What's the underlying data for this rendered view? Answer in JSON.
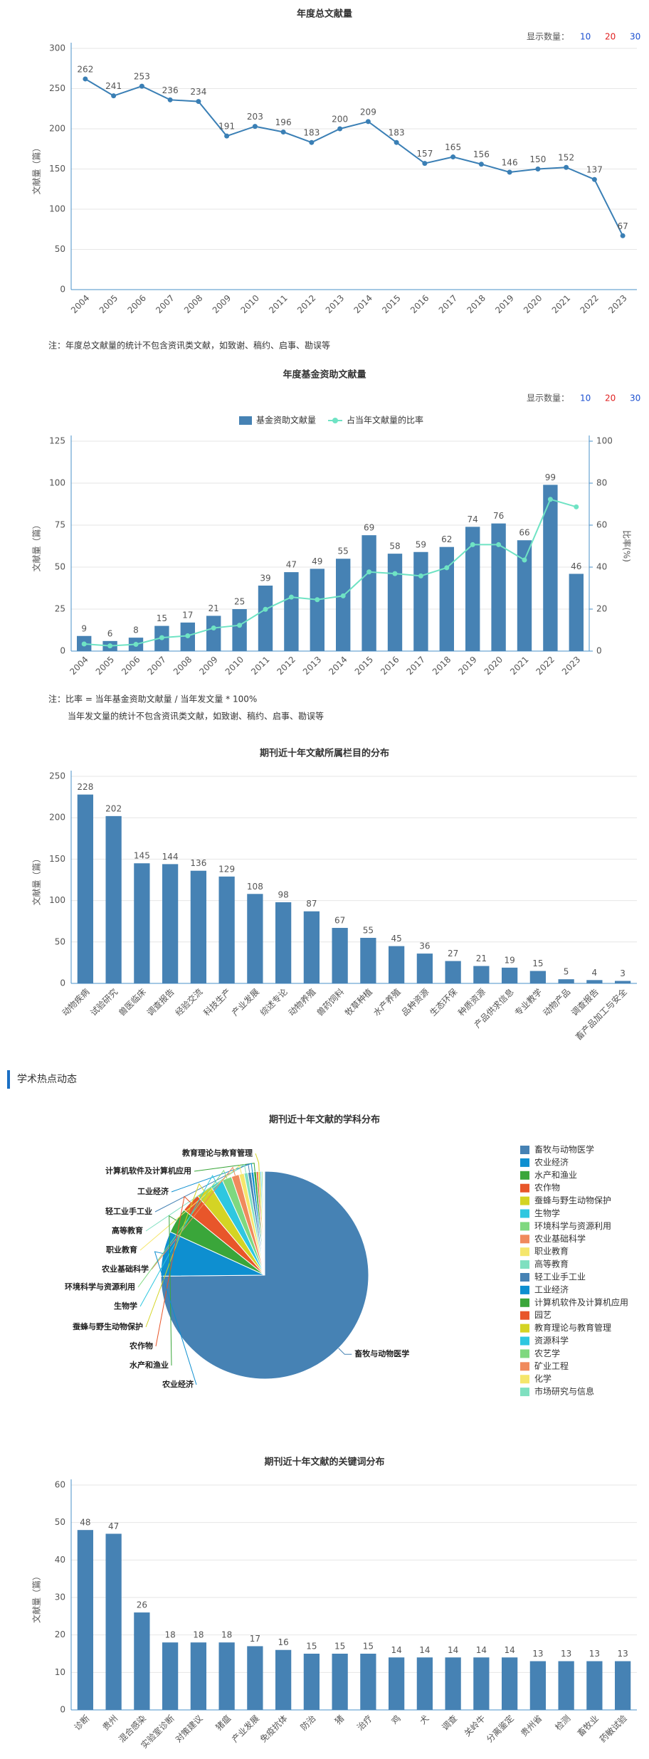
{
  "section_title": "学术热点动态",
  "chart_data": [
    {
      "type": "line",
      "title": "年度总文献量",
      "ylabel": "文献量（篇）",
      "color": "#3a7fb5",
      "controls": {
        "label": "显示数量：",
        "options": [
          10,
          20,
          30
        ],
        "option_colors": [
          "#1a4fd0",
          "#e02020",
          "#1a4fd0"
        ]
      },
      "notes": [
        "注：年度总文献量的统计不包含资讯类文献，如致谢、稿约、启事、勘误等"
      ],
      "categories": [
        "2004",
        "2005",
        "2006",
        "2007",
        "2008",
        "2009",
        "2010",
        "2011",
        "2012",
        "2013",
        "2014",
        "2015",
        "2016",
        "2017",
        "2018",
        "2019",
        "2020",
        "2021",
        "2022",
        "2023"
      ],
      "values": [
        262,
        241,
        253,
        236,
        234,
        191,
        203,
        196,
        183,
        200,
        209,
        183,
        157,
        165,
        156,
        146,
        150,
        152,
        137,
        67
      ],
      "ylim": [
        0,
        300
      ],
      "yticks": [
        0,
        50,
        100,
        150,
        200,
        250,
        300
      ],
      "grid": true
    },
    {
      "type": "bar",
      "title": "年度基金资助文献量",
      "ylabel": "文献量（篇）",
      "y2label": "比率(%)",
      "controls": {
        "label": "显示数量：",
        "options": [
          10,
          20,
          30
        ],
        "option_colors": [
          "#1a4fd0",
          "#e02020",
          "#1a4fd0"
        ]
      },
      "notes": [
        "注：比率 = 当年基金资助文献量 / 当年发文量 * 100%",
        "当年发文量的统计不包含资讯类文献，如致谢、稿约、启事、勘误等"
      ],
      "categories": [
        "2004",
        "2005",
        "2006",
        "2007",
        "2008",
        "2009",
        "2010",
        "2011",
        "2012",
        "2013",
        "2014",
        "2015",
        "2016",
        "2017",
        "2018",
        "2019",
        "2020",
        "2021",
        "2022",
        "2023"
      ],
      "series": [
        {
          "name": "基金资助文献量",
          "color": "#4682b4",
          "values": [
            9,
            6,
            8,
            15,
            17,
            21,
            25,
            39,
            47,
            49,
            55,
            69,
            58,
            59,
            62,
            74,
            76,
            66,
            99,
            46
          ]
        },
        {
          "name": "占当年文献量的比率",
          "color": "#6fe3c4",
          "axis": "y2",
          "values": [
            3.4,
            2.5,
            3.2,
            6.4,
            7.3,
            11,
            12.3,
            19.9,
            25.7,
            24.5,
            26.3,
            37.7,
            36.9,
            35.8,
            39.7,
            50.7,
            50.7,
            43.4,
            72.3,
            68.7
          ]
        }
      ],
      "ylim": [
        0,
        125
      ],
      "yticks": [
        0,
        25,
        50,
        75,
        100,
        125
      ],
      "y2lim": [
        0,
        100
      ],
      "y2ticks": [
        0,
        20,
        40,
        60,
        80,
        100
      ],
      "grid": true
    },
    {
      "type": "bar",
      "title": "期刊近十年文献所属栏目的分布",
      "ylabel": "文献量（篇）",
      "color": "#4682b4",
      "categories": [
        "动物疾病",
        "试验研究",
        "兽医临床",
        "调查报告",
        "经验交流",
        "科技生产",
        "产业发展",
        "综述专论",
        "动物养殖",
        "兽药饲料",
        "牧草种植",
        "水产养殖",
        "品种资源",
        "生态环保",
        "种质资源",
        "产品供求信息",
        "专业教学",
        "动物产品",
        "调查报告",
        "畜产品加工与安全"
      ],
      "values": [
        228,
        202,
        145,
        144,
        136,
        129,
        108,
        98,
        87,
        67,
        55,
        45,
        36,
        27,
        21,
        19,
        15,
        5,
        4,
        3
      ],
      "ylim": [
        0,
        250
      ],
      "yticks": [
        0,
        50,
        100,
        150,
        200,
        250
      ],
      "grid": true
    },
    {
      "type": "pie",
      "title": "期刊近十年文献的学科分布",
      "categories": [
        "畜牧与动物医学",
        "农业经济",
        "水产和渔业",
        "农作物",
        "蚕蜂与野生动物保护",
        "生物学",
        "环境科学与资源利用",
        "农业基础科学",
        "职业教育",
        "高等教育",
        "轻工业手工业",
        "工业经济",
        "计算机软件及计算机应用",
        "园艺",
        "教育理论与教育管理",
        "资源科学",
        "农艺学",
        "矿业工程",
        "化学",
        "市场研究与信息"
      ],
      "values": [
        75,
        7,
        4,
        3,
        2.5,
        2,
        1.5,
        1.2,
        0.8,
        0.6,
        0.5,
        0.4,
        0.4,
        0.3,
        0.3,
        0.2,
        0.2,
        0.1,
        0.1,
        0.1
      ],
      "colors": [
        "#4682b4",
        "#0e8fd0",
        "#3aa63a",
        "#e8562a",
        "#d4d424",
        "#2ec7e0",
        "#7fd87f",
        "#f08a5d",
        "#f5e66c",
        "#7fe0c0",
        "#4682b4",
        "#0e8fd0",
        "#3aa63a",
        "#e8562a",
        "#d4d424",
        "#2ec7e0",
        "#7fd87f",
        "#f08a5d",
        "#f5e66c",
        "#7fe0c0"
      ]
    },
    {
      "type": "bar",
      "title": "期刊近十年文献的关键词分布",
      "ylabel": "文献量（篇）",
      "color": "#4682b4",
      "categories": [
        "诊断",
        "贵州",
        "混合感染",
        "实验室诊断",
        "对策建议",
        "猪瘟",
        "产业发展",
        "免疫抗体",
        "防治",
        "猪",
        "治疗",
        "鸡",
        "犬",
        "调查",
        "关岭牛",
        "分离鉴定",
        "贵州省",
        "检测",
        "畜牧业",
        "药敏试验"
      ],
      "values": [
        48,
        47,
        26,
        18,
        18,
        18,
        17,
        16,
        15,
        15,
        15,
        14,
        14,
        14,
        14,
        14,
        13,
        13,
        13,
        13
      ],
      "ylim": [
        0,
        60
      ],
      "yticks": [
        0,
        10,
        20,
        30,
        40,
        50,
        60
      ],
      "grid": true
    }
  ]
}
